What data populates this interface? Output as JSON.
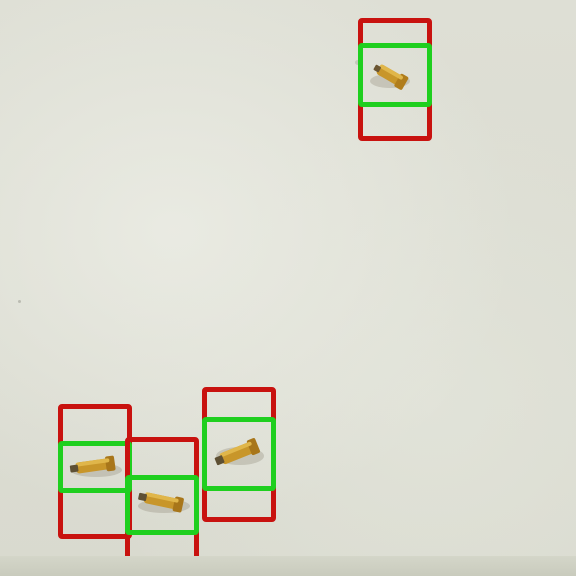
{
  "scene": {
    "description_kind": "detection-overlay",
    "colors": {
      "background": "#dcddd3",
      "outer_box": "#c8120f",
      "inner_box": "#1fcf1f",
      "object_body": "#c8962a",
      "object_shadow": "#5a4a2a"
    },
    "detections": [
      {
        "name": "detection-top-right"
      },
      {
        "name": "detection-bottom-left-1"
      },
      {
        "name": "detection-bottom-left-2"
      },
      {
        "name": "detection-bottom-center"
      }
    ]
  }
}
